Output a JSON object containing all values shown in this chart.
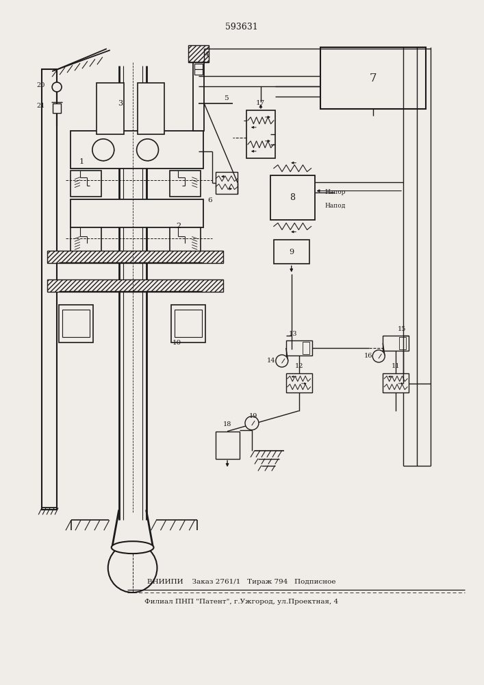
{
  "patent_number": "593631",
  "bg_color": "#f0ede8",
  "line_color": "#1a1a1a",
  "footer_line1": "ВНИИПИ    Заказ 2761/1   Тираж 794   Подписное",
  "footer_line2": "Филиал ПНП \"Патент\", г.Ужгород, ул.Проектная, 4"
}
